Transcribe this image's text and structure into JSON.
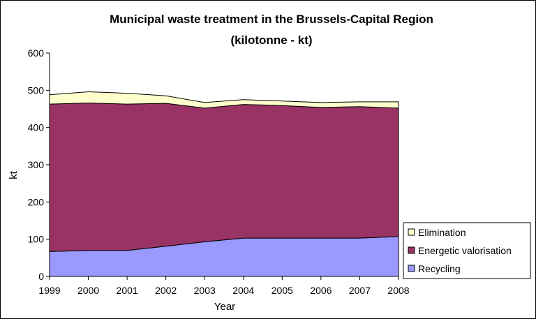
{
  "chart_data": {
    "type": "area",
    "stacked": true,
    "title": "Municipal waste treatment in the Brussels-Capital Region",
    "subtitle": "(kilotonne - kt)",
    "xlabel": "Year",
    "ylabel": "kt",
    "x": [
      "1999",
      "2000",
      "2001",
      "2002",
      "2003",
      "2004",
      "2005",
      "2006",
      "2007",
      "2008"
    ],
    "ylim": [
      0,
      600
    ],
    "yticks": [
      0,
      100,
      200,
      300,
      400,
      500,
      600
    ],
    "grid": false,
    "legend_position": "bottom-right",
    "series": [
      {
        "name": "Recycling",
        "color": "#9999ff",
        "values": [
          67,
          70,
          70,
          81,
          93,
          103,
          103,
          103,
          103,
          107
        ]
      },
      {
        "name": "Energetic valorisation",
        "color": "#993366",
        "values": [
          396,
          396,
          393,
          384,
          359,
          359,
          356,
          351,
          353,
          345
        ]
      },
      {
        "name": "Elimination",
        "color": "#ffffcc",
        "values": [
          25,
          30,
          29,
          20,
          15,
          13,
          12,
          13,
          13,
          17
        ]
      }
    ]
  }
}
